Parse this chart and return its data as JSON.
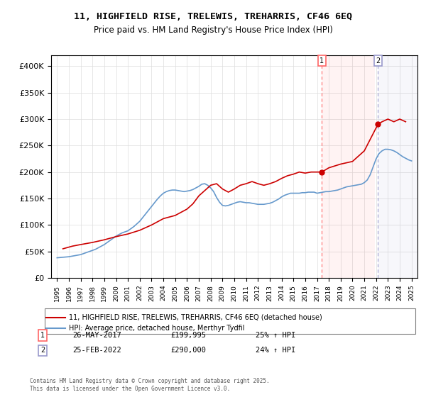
{
  "title_line1": "11, HIGHFIELD RISE, TRELEWIS, TREHARRIS, CF46 6EQ",
  "title_line2": "Price paid vs. HM Land Registry's House Price Index (HPI)",
  "legend_label1": "11, HIGHFIELD RISE, TRELEWIS, TREHARRIS, CF46 6EQ (detached house)",
  "legend_label2": "HPI: Average price, detached house, Merthyr Tydfil",
  "marker1_label": "1",
  "marker1_date": "26-MAY-2017",
  "marker1_price": "£199,995",
  "marker1_hpi": "25% ↑ HPI",
  "marker1_x": 2017.4,
  "marker2_label": "2",
  "marker2_date": "25-FEB-2022",
  "marker2_price": "£290,000",
  "marker2_hpi": "24% ↑ HPI",
  "marker2_x": 2022.15,
  "color_property": "#cc0000",
  "color_hpi": "#6699cc",
  "color_vline": "#ff6666",
  "color_vline_fill": "#ffe8e8",
  "color_vline2": "#9999cc",
  "color_vline2_fill": "#e8e8ff",
  "xlim": [
    1994.5,
    2025.5
  ],
  "ylim": [
    0,
    420000
  ],
  "yticks": [
    0,
    50000,
    100000,
    150000,
    200000,
    250000,
    300000,
    350000,
    400000
  ],
  "ytick_labels": [
    "£0",
    "£50K",
    "£100K",
    "£150K",
    "£200K",
    "£250K",
    "£300K",
    "£350K",
    "£400K"
  ],
  "xtick_years": [
    1995,
    1996,
    1997,
    1998,
    1999,
    2000,
    2001,
    2002,
    2003,
    2004,
    2005,
    2006,
    2007,
    2008,
    2009,
    2010,
    2011,
    2012,
    2013,
    2014,
    2015,
    2016,
    2017,
    2018,
    2019,
    2020,
    2021,
    2022,
    2023,
    2024,
    2025
  ],
  "footnote": "Contains HM Land Registry data © Crown copyright and database right 2025.\nThis data is licensed under the Open Government Licence v3.0.",
  "hpi_years": [
    1995.0,
    1995.25,
    1995.5,
    1995.75,
    1996.0,
    1996.25,
    1996.5,
    1996.75,
    1997.0,
    1997.25,
    1997.5,
    1997.75,
    1998.0,
    1998.25,
    1998.5,
    1998.75,
    1999.0,
    1999.25,
    1999.5,
    1999.75,
    2000.0,
    2000.25,
    2000.5,
    2000.75,
    2001.0,
    2001.25,
    2001.5,
    2001.75,
    2002.0,
    2002.25,
    2002.5,
    2002.75,
    2003.0,
    2003.25,
    2003.5,
    2003.75,
    2004.0,
    2004.25,
    2004.5,
    2004.75,
    2005.0,
    2005.25,
    2005.5,
    2005.75,
    2006.0,
    2006.25,
    2006.5,
    2006.75,
    2007.0,
    2007.25,
    2007.5,
    2007.75,
    2008.0,
    2008.25,
    2008.5,
    2008.75,
    2009.0,
    2009.25,
    2009.5,
    2009.75,
    2010.0,
    2010.25,
    2010.5,
    2010.75,
    2011.0,
    2011.25,
    2011.5,
    2011.75,
    2012.0,
    2012.25,
    2012.5,
    2012.75,
    2013.0,
    2013.25,
    2013.5,
    2013.75,
    2014.0,
    2014.25,
    2014.5,
    2014.75,
    2015.0,
    2015.25,
    2015.5,
    2015.75,
    2016.0,
    2016.25,
    2016.5,
    2016.75,
    2017.0,
    2017.25,
    2017.5,
    2017.75,
    2018.0,
    2018.25,
    2018.5,
    2018.75,
    2019.0,
    2019.25,
    2019.5,
    2019.75,
    2020.0,
    2020.25,
    2020.5,
    2020.75,
    2021.0,
    2021.25,
    2021.5,
    2021.75,
    2022.0,
    2022.25,
    2022.5,
    2022.75,
    2023.0,
    2023.25,
    2023.5,
    2023.75,
    2024.0,
    2024.25,
    2024.5,
    2024.75,
    2025.0
  ],
  "hpi_values": [
    38000,
    38500,
    39000,
    39500,
    40000,
    41000,
    42000,
    43000,
    44000,
    46000,
    48000,
    50000,
    52000,
    54000,
    57000,
    60000,
    63000,
    67000,
    71000,
    75000,
    79000,
    82000,
    85000,
    87000,
    89000,
    93000,
    97000,
    102000,
    107000,
    114000,
    121000,
    128000,
    135000,
    142000,
    149000,
    155000,
    160000,
    163000,
    165000,
    166000,
    166000,
    165000,
    164000,
    163000,
    164000,
    165000,
    167000,
    170000,
    173000,
    177000,
    178000,
    175000,
    170000,
    163000,
    152000,
    143000,
    137000,
    136000,
    137000,
    139000,
    141000,
    143000,
    144000,
    143000,
    142000,
    142000,
    141000,
    140000,
    139000,
    139000,
    139000,
    140000,
    141000,
    143000,
    146000,
    149000,
    153000,
    156000,
    158000,
    160000,
    160000,
    160000,
    160000,
    161000,
    161000,
    162000,
    162000,
    162000,
    160000,
    161000,
    162000,
    163000,
    163000,
    164000,
    165000,
    166000,
    168000,
    170000,
    172000,
    173000,
    174000,
    175000,
    176000,
    177000,
    180000,
    185000,
    195000,
    210000,
    225000,
    235000,
    240000,
    243000,
    243000,
    242000,
    240000,
    237000,
    233000,
    229000,
    226000,
    223000,
    221000
  ],
  "prop_years": [
    1995.5,
    1996.3,
    1997.0,
    1998.0,
    1999.0,
    2000.0,
    2001.0,
    2002.0,
    2003.0,
    2004.0,
    2005.0,
    2006.0,
    2006.5,
    2007.0,
    2007.5,
    2008.0,
    2008.5,
    2009.0,
    2009.5,
    2010.0,
    2010.5,
    2011.0,
    2011.5,
    2012.0,
    2012.5,
    2013.0,
    2013.5,
    2014.0,
    2014.5,
    2015.0,
    2015.5,
    2016.0,
    2016.5,
    2017.4,
    2018.0,
    2019.0,
    2020.0,
    2021.0,
    2022.15,
    2022.5,
    2023.0,
    2023.5,
    2024.0,
    2024.5
  ],
  "prop_values": [
    55000,
    60000,
    63000,
    67000,
    72000,
    78000,
    83000,
    90000,
    100000,
    112000,
    118000,
    130000,
    140000,
    155000,
    165000,
    175000,
    178000,
    168000,
    162000,
    168000,
    175000,
    178000,
    182000,
    178000,
    175000,
    178000,
    182000,
    188000,
    193000,
    196000,
    200000,
    198000,
    200000,
    199995,
    208000,
    215000,
    220000,
    240000,
    290000,
    295000,
    300000,
    295000,
    300000,
    295000
  ]
}
